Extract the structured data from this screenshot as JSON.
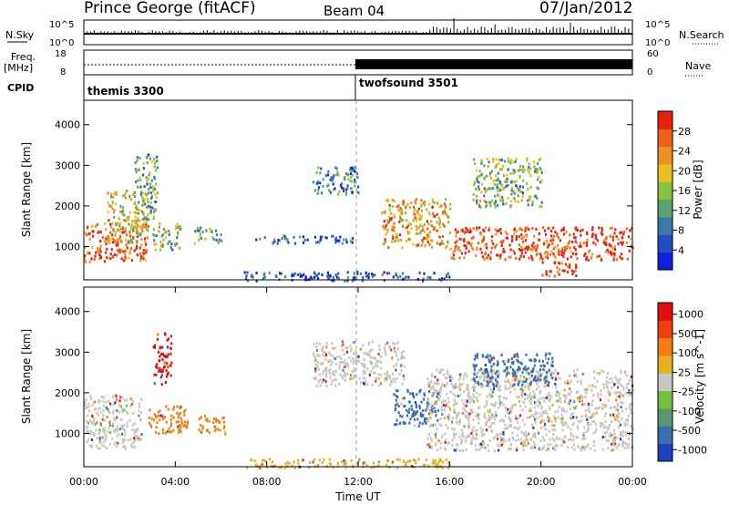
{
  "header": {
    "station": "Prince George (fitACF)",
    "beam": "Beam 04",
    "date": "07/Jan/2012"
  },
  "top_panels": {
    "nsky_label": "N.Sky",
    "nsearch_label": "N.Search",
    "nsky_ticks": [
      "10^5",
      "10^0"
    ],
    "nsearch_ticks": [
      "10^5",
      "10^0"
    ],
    "freq_label": "Freq.",
    "freq_unit": "[MHz]",
    "freq_ticks": [
      "18",
      "8"
    ],
    "nave_label": "Nave",
    "nave_ticks": [
      "60",
      "0"
    ],
    "cpid_label": "CPID",
    "cpid_segments": [
      "themis 3300",
      "twofsound 3501"
    ]
  },
  "chart_data": [
    {
      "type": "heatmap",
      "title": "",
      "xlabel": "",
      "ylabel": "Slant Range [km]",
      "xlim": [
        0,
        24
      ],
      "ylim": [
        180,
        4600
      ],
      "yticks": [
        "1000",
        "2000",
        "3000",
        "4000"
      ],
      "colorbar": {
        "label": "Power [dB]",
        "ticks": [
          "4",
          "8",
          "12",
          "16",
          "20",
          "24",
          "28"
        ],
        "colors": [
          "#1020e0",
          "#2050c0",
          "#3a7aa8",
          "#5aa070",
          "#8cc040",
          "#e8c020",
          "#f09020",
          "#f06018",
          "#e82010"
        ]
      },
      "regions": [
        {
          "t0": 0.0,
          "t1": 2.8,
          "r0": 650,
          "r1": 1600,
          "level": 0.85
        },
        {
          "t0": 1.0,
          "t1": 2.8,
          "r0": 1100,
          "r1": 2400,
          "level": 0.6
        },
        {
          "t0": 2.2,
          "t1": 3.2,
          "r0": 1700,
          "r1": 3300,
          "level": 0.4
        },
        {
          "t0": 3.0,
          "t1": 4.2,
          "r0": 900,
          "r1": 1600,
          "level": 0.45
        },
        {
          "t0": 4.8,
          "t1": 6.0,
          "r0": 1100,
          "r1": 1500,
          "level": 0.45
        },
        {
          "t0": 7.5,
          "t1": 11.8,
          "r0": 1100,
          "r1": 1300,
          "level": 0.2
        },
        {
          "t0": 10.0,
          "t1": 12.0,
          "r0": 2300,
          "r1": 3000,
          "level": 0.3
        },
        {
          "t0": 13.0,
          "t1": 16.0,
          "r0": 1000,
          "r1": 2200,
          "level": 0.7
        },
        {
          "t0": 16.0,
          "t1": 24.0,
          "r0": 700,
          "r1": 1500,
          "level": 0.9
        },
        {
          "t0": 17.0,
          "t1": 20.0,
          "r0": 2000,
          "r1": 3200,
          "level": 0.45
        },
        {
          "t0": 20.0,
          "t1": 21.5,
          "r0": 300,
          "r1": 650,
          "level": 0.95
        },
        {
          "t0": 7.0,
          "t1": 16.0,
          "r0": 180,
          "r1": 400,
          "level": 0.15
        }
      ]
    },
    {
      "type": "heatmap",
      "title": "",
      "xlabel": "Time UT",
      "ylabel": "Slant Range [km]",
      "xlim": [
        0,
        24
      ],
      "ylim": [
        180,
        4600
      ],
      "yticks": [
        "1000",
        "2000",
        "3000",
        "4000"
      ],
      "xticks": [
        "00:00",
        "04:00",
        "08:00",
        "12:00",
        "16:00",
        "20:00",
        "00:00"
      ],
      "colorbar": {
        "label": "Velocity [m s^-1]",
        "ticks": [
          "1000",
          "500",
          "100",
          "25",
          "-25",
          "-100",
          "-500",
          "-1000"
        ],
        "colors": [
          "#2040c0",
          "#3870b0",
          "#5a9870",
          "#70c040",
          "#c8c8c0",
          "#e8b020",
          "#f08010",
          "#f04010",
          "#e01010"
        ]
      },
      "regions": [
        {
          "t0": 0.0,
          "t1": 2.5,
          "r0": 650,
          "r1": 2000,
          "color": "#c8c8c0"
        },
        {
          "t0": 2.8,
          "t1": 4.5,
          "r0": 1000,
          "r1": 1700,
          "color": "#f08010"
        },
        {
          "t0": 5.0,
          "t1": 6.2,
          "r0": 1000,
          "r1": 1500,
          "color": "#f08010"
        },
        {
          "t0": 3.0,
          "t1": 3.8,
          "r0": 2200,
          "r1": 3500,
          "color": "#e01010"
        },
        {
          "t0": 10.0,
          "t1": 14.0,
          "r0": 2200,
          "r1": 3300,
          "color": "#c8c8c0"
        },
        {
          "t0": 13.5,
          "t1": 15.5,
          "r0": 1200,
          "r1": 2100,
          "color": "#3870b0"
        },
        {
          "t0": 15.0,
          "t1": 24.0,
          "r0": 600,
          "r1": 2600,
          "color": "#c8c8c0"
        },
        {
          "t0": 17.0,
          "t1": 20.5,
          "r0": 2200,
          "r1": 3000,
          "color": "#3870b0"
        },
        {
          "t0": 7.0,
          "t1": 16.0,
          "r0": 180,
          "r1": 400,
          "color": "#e8b020"
        }
      ]
    }
  ]
}
